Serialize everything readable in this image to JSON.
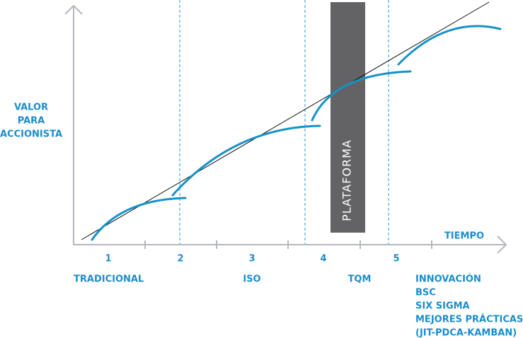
{
  "y_axis_label": [
    "VALOR",
    "PARA",
    "ACCIONISTA"
  ],
  "x_axis_label": "TIEMPO",
  "stages": [
    "1",
    "2",
    "3",
    "4",
    "5"
  ],
  "stage_labels": [
    "TRADICIONAL",
    "ISO",
    "TQM"
  ],
  "innovation_list": [
    "INNOVACIÓN",
    "BSC",
    "SIX SIGMA",
    "MEJORES PRÁCTICAS",
    "(JIT-PDCA-KAMBAN)"
  ],
  "platform_label": "PLATAFORMA"
}
